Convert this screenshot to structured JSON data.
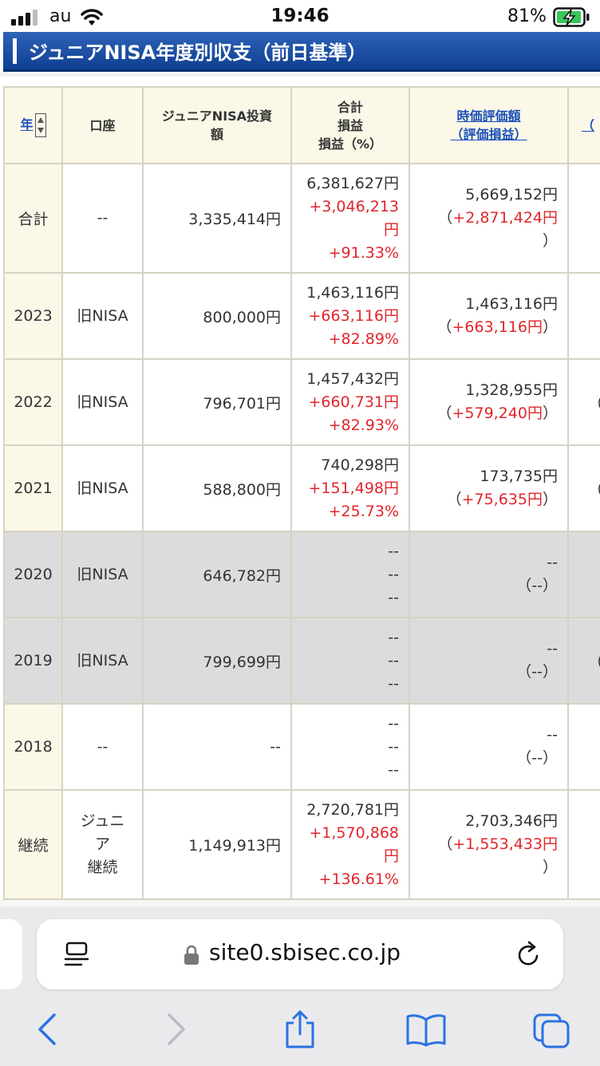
{
  "status_bar": {
    "carrier": "au",
    "time": "19:46",
    "battery_pct": "81%"
  },
  "section": {
    "title": "ジュニアNISA年度別収支（前日基準）"
  },
  "table": {
    "headers": {
      "year": "年",
      "account": "口座",
      "invest_line1": "ジュニアNISA投資",
      "invest_line2": "額",
      "total_line1": "合計",
      "total_line2": "損益",
      "total_line3": "損益（%）",
      "eval_line1": "時価評価額",
      "eval_line2": "（評価損益）",
      "next": "（"
    },
    "rows": [
      {
        "year": "合計",
        "account": "--",
        "invest": "3,335,414円",
        "total": "6,381,627円",
        "profit_a": "+3,046,213",
        "profit_b": "円",
        "pct": "+91.33%",
        "eval": "5,669,152円",
        "eval_pl": "+2,871,424円",
        "next": ""
      },
      {
        "year": "2023",
        "account": "旧NISA",
        "invest": "800,000円",
        "total": "1,463,116円",
        "profit": "+663,116円",
        "pct": "+82.89%",
        "eval": "1,463,116円",
        "eval_pl": "+663,116円",
        "next": ""
      },
      {
        "year": "2022",
        "account": "旧NISA",
        "invest": "796,701円",
        "total": "1,457,432円",
        "profit": "+660,731円",
        "pct": "+82.93%",
        "eval": "1,328,955円",
        "eval_pl": "+579,240円",
        "next": "（"
      },
      {
        "year": "2021",
        "account": "旧NISA",
        "invest": "588,800円",
        "total": "740,298円",
        "profit": "+151,498円",
        "pct": "+25.73%",
        "eval": "173,735円",
        "eval_pl": "+75,635円",
        "next": "（"
      },
      {
        "year": "2020",
        "account": "旧NISA",
        "invest": "646,782円",
        "total": "--",
        "profit": "--",
        "pct": "--",
        "eval": "--",
        "eval_pl": "--",
        "next": ""
      },
      {
        "year": "2019",
        "account": "旧NISA",
        "invest": "799,699円",
        "total": "--",
        "profit": "--",
        "pct": "--",
        "eval": "--",
        "eval_pl": "--",
        "next": "（"
      },
      {
        "year": "2018",
        "account": "--",
        "invest": "--",
        "total": "--",
        "profit": "--",
        "pct": "--",
        "eval": "--",
        "eval_pl": "--",
        "next": ""
      },
      {
        "year": "継続",
        "account_a": "ジュニ",
        "account_b": "ア",
        "account_c": "継続",
        "invest": "1,149,913円",
        "total": "2,720,781円",
        "profit_a": "+1,570,868",
        "profit_b": "円",
        "pct": "+136.61%",
        "eval": "2,703,346円",
        "eval_pl": "+1,553,433円",
        "next": ""
      }
    ],
    "paren_open": "（",
    "paren_close": "）"
  },
  "browser": {
    "url": "site0.sbisec.co.jp"
  },
  "colors": {
    "header_blue": "#1a4fb8",
    "profit_red": "#e0262b",
    "header_bg": "#fbf8e8",
    "disabled_row": "#dcdcdc"
  }
}
